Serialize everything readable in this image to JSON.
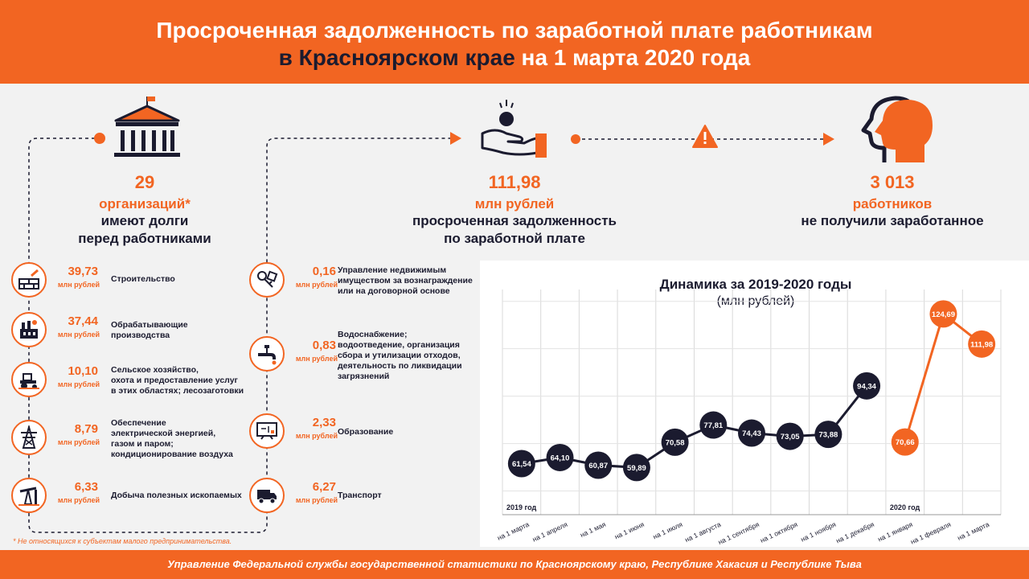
{
  "header": {
    "line1": "Просроченная задолженность по заработной плате работникам",
    "line2_dark": "в Красноярском крае",
    "line2_rest": " на 1 марта 2020 года"
  },
  "stats": {
    "orgs": {
      "num": "29",
      "unit": "организаций*",
      "desc1": "имеют долги",
      "desc2": "перед работниками"
    },
    "debt": {
      "num": "111,98",
      "unit": "млн рублей",
      "desc1": "просроченная задолженность",
      "desc2": "по заработной плате"
    },
    "workers": {
      "num": "3 013",
      "unit": "работников",
      "desc1": "не получили заработанное"
    }
  },
  "icons": {
    "building": "government-building-icon",
    "hand_coin": "hand-coin-icon",
    "warning": "warning-icon",
    "head": "person-head-icon"
  },
  "industries_left": [
    {
      "value": "39,73",
      "unit": "млн рублей",
      "label": [
        "Строительство"
      ],
      "icon": "construction-icon"
    },
    {
      "value": "37,44",
      "unit": "млн рублей",
      "label": [
        "Обрабатывающие",
        "производства"
      ],
      "icon": "factory-icon"
    },
    {
      "value": "10,10",
      "unit": "млн рублей",
      "label": [
        "Сельское хозяйство,",
        "охота и предоставление услуг",
        "в этих областях; лесозаготовки"
      ],
      "icon": "tractor-icon"
    },
    {
      "value": "8,79",
      "unit": "млн рублей",
      "label": [
        "Обеспечение",
        "электрической энергией,",
        "газом и паром;",
        "кондиционирование воздуха"
      ],
      "icon": "power-tower-icon"
    },
    {
      "value": "6,33",
      "unit": "млн рублей",
      "label": [
        "Добыча полезных ископаемых"
      ],
      "icon": "oil-pump-icon"
    }
  ],
  "industries_right": [
    {
      "value": "0,16",
      "unit": "млн рублей",
      "label": [
        "Управление недвижимым",
        "имуществом за вознаграждение",
        "или на договорной основе"
      ],
      "icon": "keys-icon"
    },
    {
      "value": "0,83",
      "unit": "млн рублей",
      "label": [
        "Водоснабжение;",
        "водоотведение, организация",
        "сбора и утилизации отходов,",
        "деятельность по ликвидации",
        "загрязнений"
      ],
      "icon": "water-tap-icon"
    },
    {
      "value": "2,33",
      "unit": "млн рублей",
      "label": [
        "Образование"
      ],
      "icon": "blackboard-icon"
    },
    {
      "value": "6,27",
      "unit": "млн рублей",
      "label": [
        "Транспорт"
      ],
      "icon": "truck-icon"
    }
  ],
  "footnote": "* Не относящихся к субъектам малого предпринимательства.",
  "footer": "Управление Федеральной службы государственной статистики по Красноярскому краю, Республике Хакасия и Республике Тыва",
  "colors": {
    "accent": "#f26522",
    "dark": "#1b1b2f",
    "background": "#f2f2f2"
  },
  "chart_data": {
    "type": "line",
    "title": "Динамика за 2019-2020 годы",
    "subtitle": "(млн рублей)",
    "categories": [
      "на 1 марта",
      "на 1 апреля",
      "на 1 мая",
      "на 1 июня",
      "на 1 июля",
      "на 1 августа",
      "на 1 сентября",
      "на 1 октября",
      "на 1 ноября",
      "на 1 декабря",
      "на 1 января",
      "на 1 февраля",
      "на 1 марта"
    ],
    "year_labels": [
      "2019 год",
      "2020 год"
    ],
    "series": [
      {
        "name": "2019 год",
        "color": "#1b1b2f",
        "values": [
          61.54,
          64.1,
          60.87,
          59.89,
          70.58,
          77.81,
          74.43,
          73.05,
          73.88,
          94.34,
          null,
          null,
          null
        ]
      },
      {
        "name": "2020 год",
        "color": "#f26522",
        "values": [
          null,
          null,
          null,
          null,
          null,
          null,
          null,
          null,
          null,
          null,
          70.66,
          124.69,
          111.98
        ]
      }
    ],
    "data_labels": [
      "61,54",
      "64,10",
      "60,87",
      "59,89",
      "70,58",
      "77,81",
      "74,43",
      "73,05",
      "73,88",
      "94,34",
      "70,66",
      "124,69",
      "111,98"
    ],
    "ylim": [
      40,
      135
    ],
    "grid": true
  }
}
